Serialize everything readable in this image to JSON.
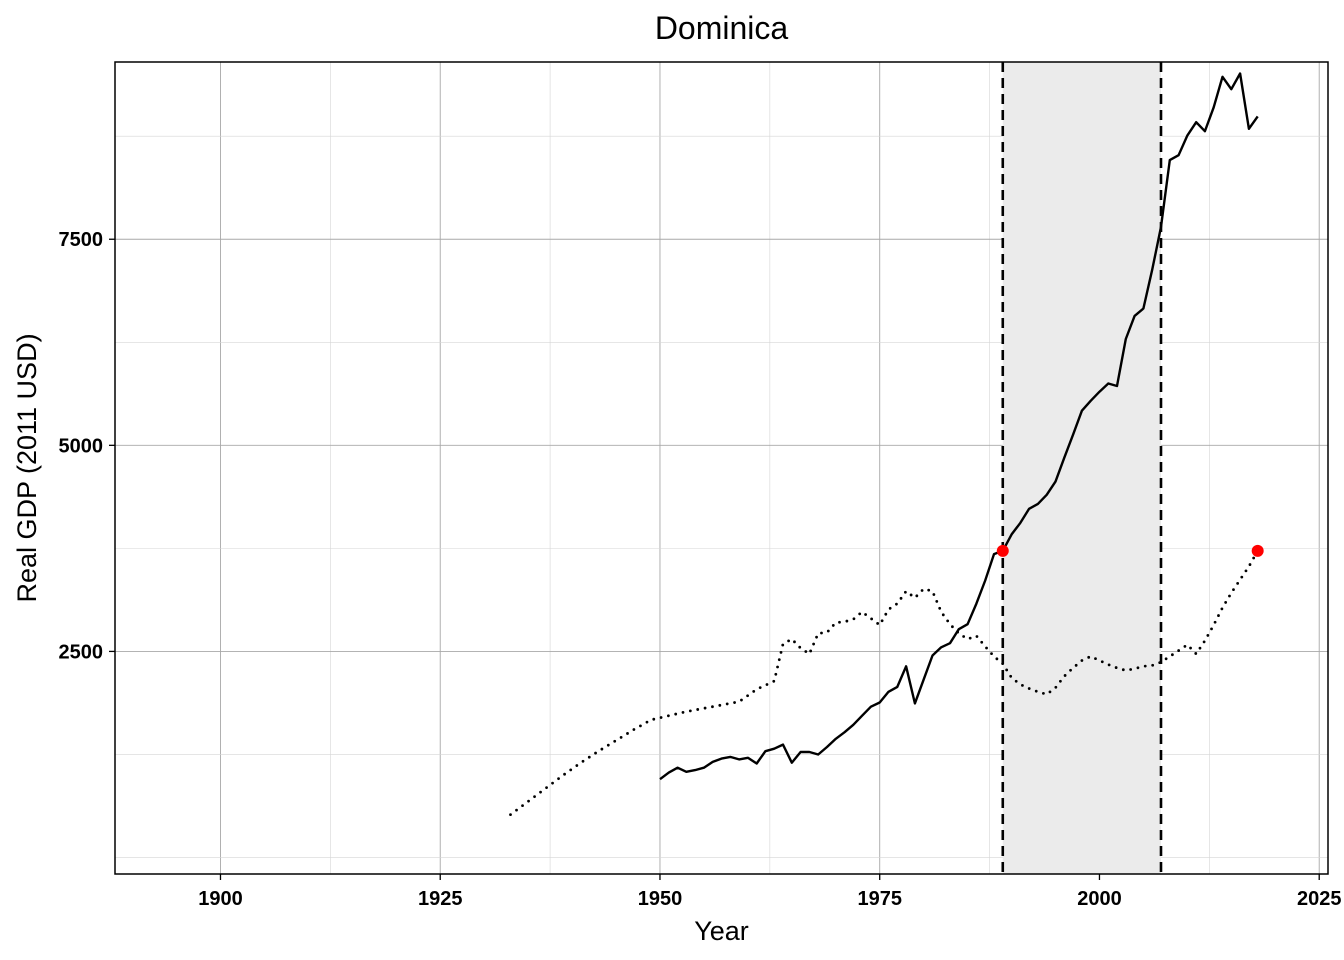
{
  "chart_data": {
    "type": "line",
    "title": "Dominica",
    "xlabel": "Year",
    "ylabel": "Real GDP (2011 USD)",
    "xlim": [
      1888,
      2026
    ],
    "ylim": [
      -200,
      9650
    ],
    "x_ticks": [
      1900,
      1925,
      1950,
      1975,
      2000,
      2025
    ],
    "y_ticks": [
      2500,
      5000,
      7500
    ],
    "grid": true,
    "legend": "none",
    "shaded_region": {
      "x": [
        1989,
        2007
      ],
      "color": "#ebebeb"
    },
    "vlines": [
      1989,
      2007
    ],
    "highlight_color": "#ff0000",
    "series": [
      {
        "style": "solid",
        "x": [
          1950,
          1951,
          1952,
          1953,
          1954,
          1955,
          1956,
          1957,
          1958,
          1959,
          1960,
          1961,
          1962,
          1963,
          1964,
          1965,
          1966,
          1967,
          1968,
          1969,
          1970,
          1971,
          1972,
          1973,
          1974,
          1975,
          1976,
          1977,
          1978,
          1979,
          1980,
          1981,
          1982,
          1983,
          1984,
          1985,
          1986,
          1987,
          1988,
          1989,
          1990,
          1991,
          1992,
          1993,
          1994,
          1995,
          1996,
          1997,
          1998,
          1999,
          2000,
          2001,
          2002,
          2003,
          2004,
          2005,
          2006,
          2007,
          2008,
          2009,
          2010,
          2011,
          2012,
          2013,
          2014,
          2015,
          2016,
          2017,
          2018
        ],
        "values": [
          950,
          1030,
          1090,
          1040,
          1060,
          1090,
          1160,
          1200,
          1220,
          1190,
          1210,
          1140,
          1290,
          1320,
          1370,
          1150,
          1280,
          1280,
          1250,
          1340,
          1440,
          1520,
          1610,
          1720,
          1830,
          1880,
          2010,
          2070,
          2320,
          1870,
          2160,
          2450,
          2550,
          2600,
          2770,
          2830,
          3080,
          3360,
          3680,
          3720,
          3920,
          4060,
          4230,
          4290,
          4400,
          4560,
          4850,
          5130,
          5420,
          5540,
          5650,
          5750,
          5720,
          6290,
          6570,
          6660,
          7130,
          7650,
          8460,
          8520,
          8760,
          8920,
          8810,
          9100,
          9470,
          9320,
          9510,
          8840,
          8990
        ]
      },
      {
        "style": "dotted",
        "x": [
          1933,
          1935,
          1937,
          1939,
          1941,
          1943,
          1945,
          1947,
          1949,
          1951,
          1953,
          1955,
          1957,
          1959,
          1961,
          1963,
          1964,
          1965,
          1966,
          1967,
          1968,
          1969,
          1970,
          1971,
          1972,
          1973,
          1974,
          1975,
          1976,
          1977,
          1978,
          1979,
          1980,
          1981,
          1982,
          1983,
          1984,
          1985,
          1986,
          1987,
          1988,
          1989,
          1990,
          1991,
          1992,
          1993,
          1994,
          1995,
          1996,
          1997,
          1998,
          1999,
          2000,
          2001,
          2002,
          2003,
          2004,
          2005,
          2006,
          2007,
          2008,
          2009,
          2010,
          2011,
          2012,
          2013,
          2014,
          2015,
          2016,
          2017,
          2018
        ],
        "values": [
          520,
          680,
          840,
          1000,
          1150,
          1290,
          1420,
          1550,
          1670,
          1720,
          1770,
          1810,
          1850,
          1890,
          2040,
          2140,
          2590,
          2650,
          2540,
          2470,
          2720,
          2730,
          2850,
          2860,
          2890,
          2980,
          2900,
          2820,
          3010,
          3080,
          3230,
          3150,
          3260,
          3230,
          2980,
          2830,
          2720,
          2650,
          2690,
          2560,
          2440,
          2350,
          2180,
          2100,
          2050,
          2010,
          1980,
          2060,
          2200,
          2300,
          2390,
          2440,
          2390,
          2340,
          2300,
          2270,
          2290,
          2320,
          2330,
          2370,
          2440,
          2510,
          2580,
          2470,
          2630,
          2820,
          3030,
          3210,
          3370,
          3530,
          3720
        ]
      }
    ],
    "points": [
      {
        "x": 1989,
        "y": 3720
      },
      {
        "x": 2018,
        "y": 3720
      }
    ]
  }
}
